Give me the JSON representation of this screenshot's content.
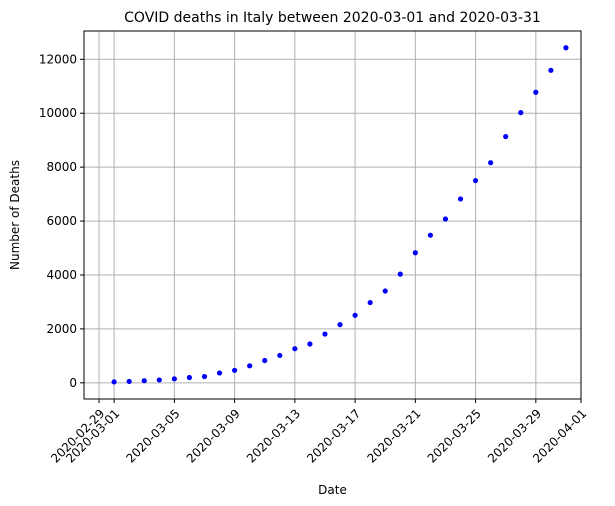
{
  "chart_data": {
    "type": "scatter",
    "title": "COVID deaths in Italy between 2020-03-01 and 2020-03-31",
    "xlabel": "Date",
    "ylabel": "Number of Deaths",
    "grid": true,
    "marker_color": "#0000ff",
    "xlim": [
      "2020-02-28",
      "2020-04-01"
    ],
    "ylim": [
      -600,
      13050
    ],
    "x_ticks": [
      "2020-02-29",
      "2020-03-01",
      "2020-03-05",
      "2020-03-09",
      "2020-03-13",
      "2020-03-17",
      "2020-03-21",
      "2020-03-25",
      "2020-03-29",
      "2020-04-01"
    ],
    "y_ticks": [
      0,
      2000,
      4000,
      6000,
      8000,
      10000,
      12000
    ],
    "x": [
      "2020-03-01",
      "2020-03-02",
      "2020-03-03",
      "2020-03-04",
      "2020-03-05",
      "2020-03-06",
      "2020-03-07",
      "2020-03-08",
      "2020-03-09",
      "2020-03-10",
      "2020-03-11",
      "2020-03-12",
      "2020-03-13",
      "2020-03-14",
      "2020-03-15",
      "2020-03-16",
      "2020-03-17",
      "2020-03-18",
      "2020-03-19",
      "2020-03-20",
      "2020-03-21",
      "2020-03-22",
      "2020-03-23",
      "2020-03-24",
      "2020-03-25",
      "2020-03-26",
      "2020-03-27",
      "2020-03-28",
      "2020-03-29",
      "2020-03-30",
      "2020-03-31"
    ],
    "y": [
      34,
      52,
      79,
      107,
      148,
      197,
      233,
      366,
      463,
      631,
      827,
      1016,
      1266,
      1441,
      1809,
      2158,
      2503,
      2978,
      3405,
      4032,
      4825,
      5476,
      6077,
      6820,
      7503,
      8165,
      9134,
      10023,
      10779,
      11591,
      12428
    ]
  }
}
